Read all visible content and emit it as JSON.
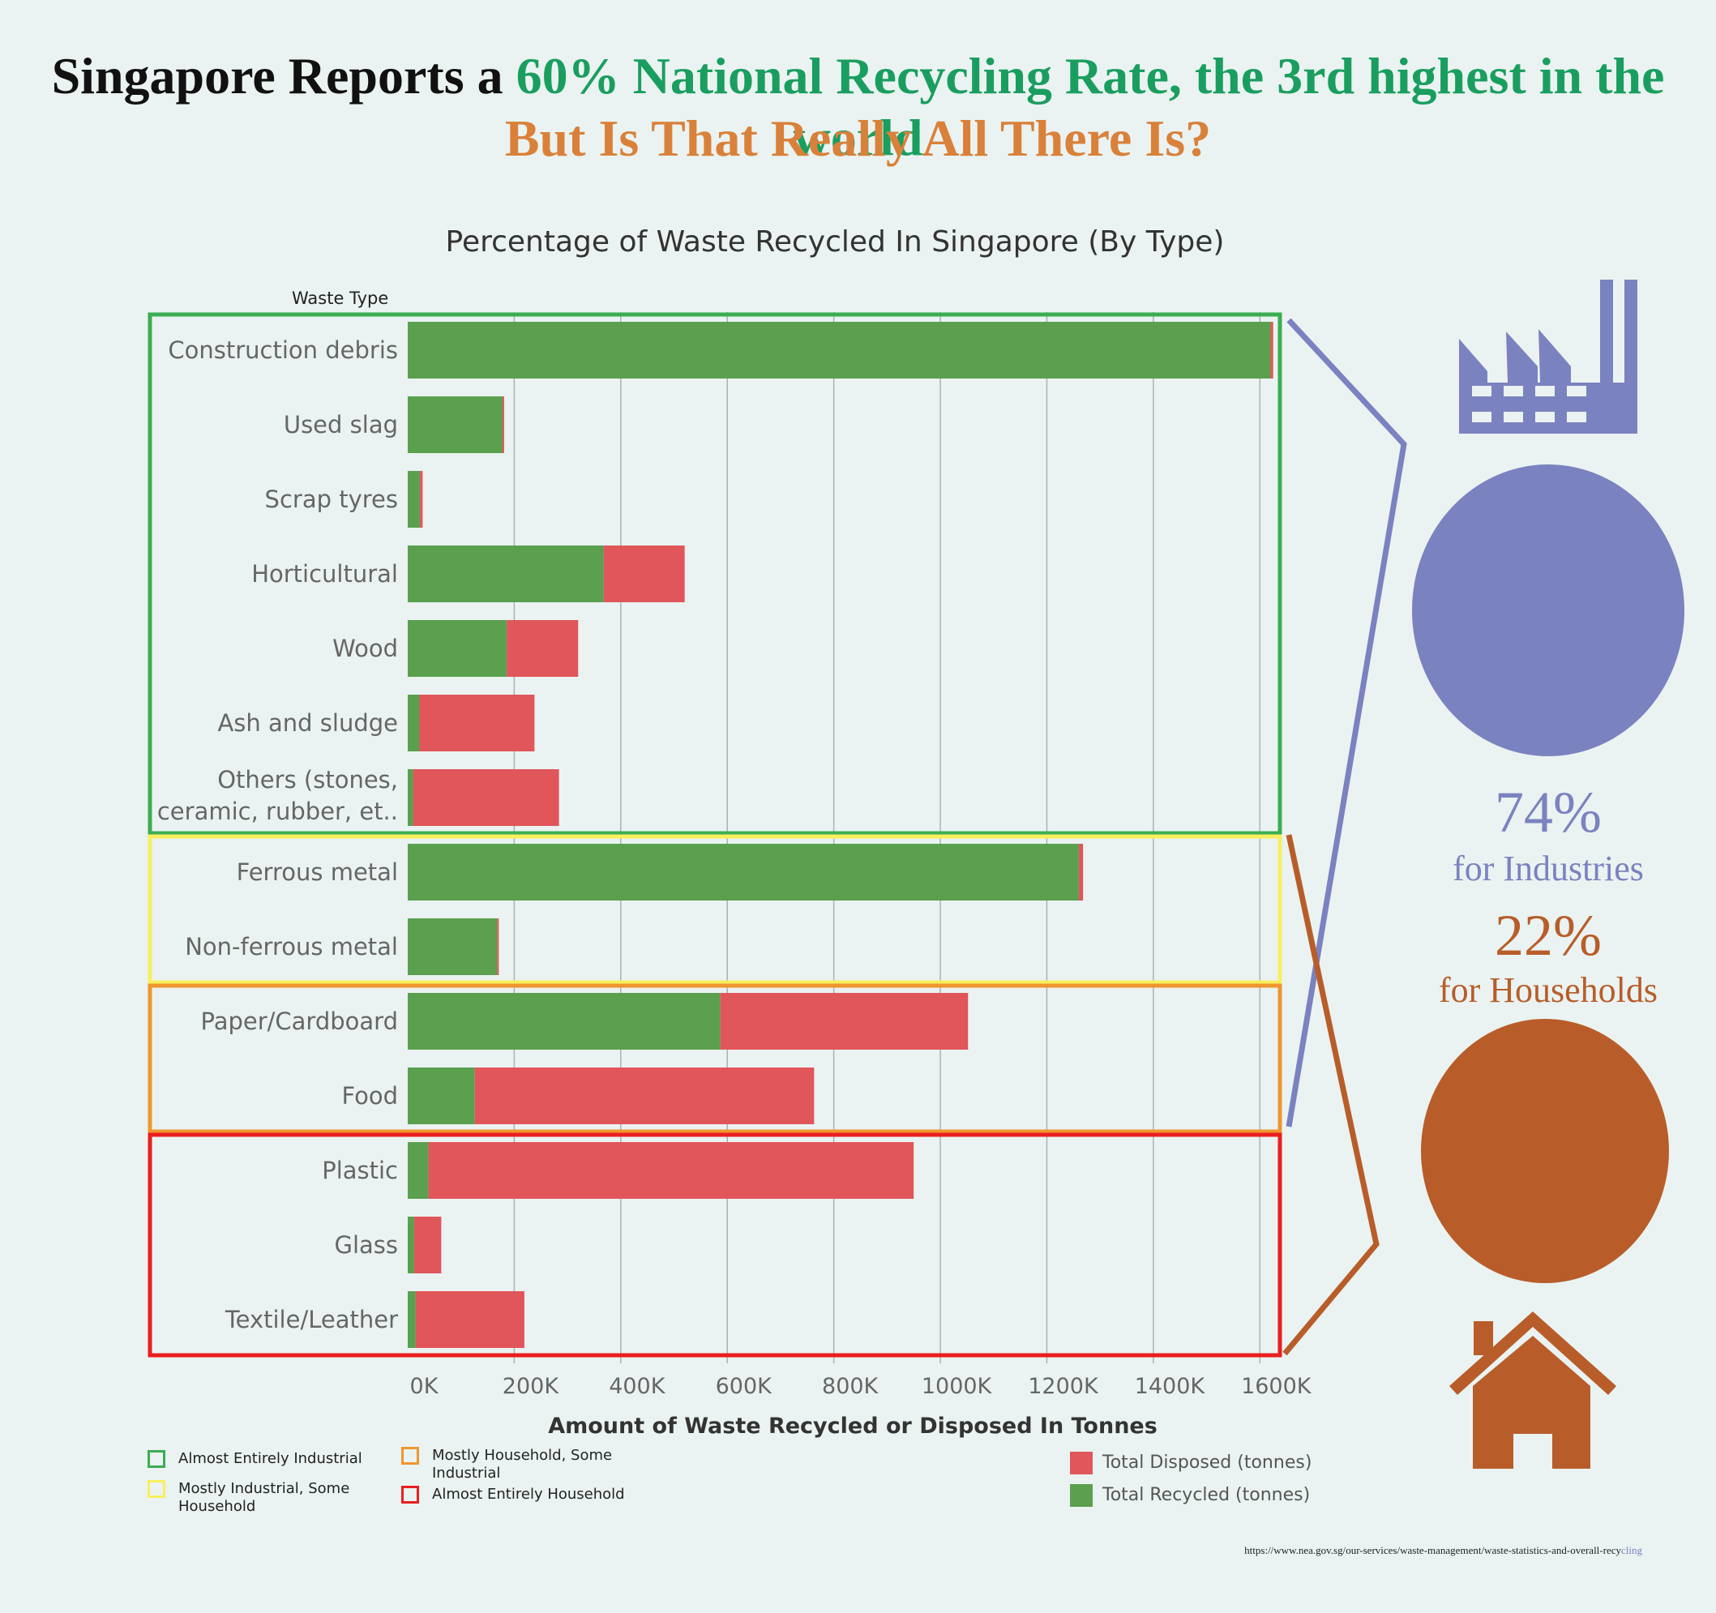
{
  "headline": {
    "line1_part1": "Singapore Reports a ",
    "line1_part2": "60% National Recycling Rate, the 3rd highest in the world",
    "line2": "But Is That Really All There Is?"
  },
  "colors": {
    "recycled": "#5aa04f",
    "disposed": "#e0565b",
    "industrial": "#3cad52",
    "mostly_industrial": "#f8ef5f",
    "mostly_household": "#f0962e",
    "household": "#ea1f1f",
    "industry_accent": "#7b82c0",
    "household_accent": "#b85d2a"
  },
  "chart_data": {
    "type": "bar",
    "orientation": "horizontal",
    "stacked": true,
    "title": "Percentage of Waste Recycled In Singapore (By Type)",
    "ylabel": "Waste Type",
    "xlabel": "Amount of Waste Recycled or Disposed In Tonnes",
    "xlim": [
      0,
      1700000
    ],
    "xticks": [
      0,
      200000,
      400000,
      600000,
      800000,
      1000000,
      1200000,
      1400000,
      1600000
    ],
    "xtick_labels": [
      "0K",
      "200K",
      "400K",
      "600K",
      "800K",
      "1000K",
      "1200K",
      "1400K",
      "1600K"
    ],
    "grid": "vertical",
    "categories": [
      "Construction debris",
      "Used slag",
      "Scrap tyres",
      "Horticultural",
      "Wood",
      "Ash and sludge",
      "Others (stones, ceramic, rubber, et..",
      "Ferrous metal",
      "Non-ferrous metal",
      "Paper/Cardboard",
      "Food",
      "Plastic",
      "Glass",
      "Textile/Leather"
    ],
    "series": [
      {
        "name": "Total Recycled (tonnes)",
        "color": "#5aa04f",
        "values": [
          1620000,
          178000,
          23000,
          368000,
          186000,
          22000,
          10000,
          1260000,
          168000,
          587000,
          126000,
          39000,
          12000,
          15000
        ]
      },
      {
        "name": "Total Disposed (tonnes)",
        "color": "#e0565b",
        "values": [
          5000,
          3000,
          5000,
          152000,
          134000,
          216000,
          274000,
          8000,
          3000,
          465000,
          637000,
          911000,
          51000,
          204000
        ]
      }
    ],
    "groups": [
      {
        "label": "Almost Entirely Industrial",
        "color": "#3cad52",
        "categories": [
          "Construction debris",
          "Used slag",
          "Scrap tyres",
          "Horticultural",
          "Wood",
          "Ash and sludge",
          "Others (stones, ceramic, rubber, et.."
        ]
      },
      {
        "label": "Mostly Industrial, Some Household",
        "color": "#f8ef5f",
        "categories": [
          "Ferrous metal",
          "Non-ferrous metal"
        ]
      },
      {
        "label": "Mostly Household, Some Industrial",
        "color": "#f0962e",
        "categories": [
          "Paper/Cardboard",
          "Food"
        ]
      },
      {
        "label": "Almost Entirely Household",
        "color": "#ea1f1f",
        "categories": [
          "Plastic",
          "Glass",
          "Textile/Leather"
        ]
      }
    ]
  },
  "legend_groups": [
    {
      "label": "Almost Entirely Industrial",
      "color": "#3cad52"
    },
    {
      "label": "Mostly Industrial, Some Household",
      "color": "#f8ef5f"
    },
    {
      "label": "Mostly Household, Some Industrial",
      "color": "#f0962e"
    },
    {
      "label": "Almost Entirely Household",
      "color": "#ea1f1f"
    }
  ],
  "legend_series": [
    {
      "label": "Total Disposed (tonnes)",
      "color": "#e0565b"
    },
    {
      "label": "Total Recycled (tonnes)",
      "color": "#5aa04f"
    }
  ],
  "sidebar": {
    "industry_pct": "74%",
    "industry_label": "for Industries",
    "household_pct": "22%",
    "household_label": "for Households",
    "industry_icon": "factory-icon",
    "household_icon": "house-icon"
  },
  "source": {
    "url_main": "https://www.nea.gov.sg/our-services/waste-management/waste-statistics-and-overall-recy",
    "url_tail": "cling"
  }
}
